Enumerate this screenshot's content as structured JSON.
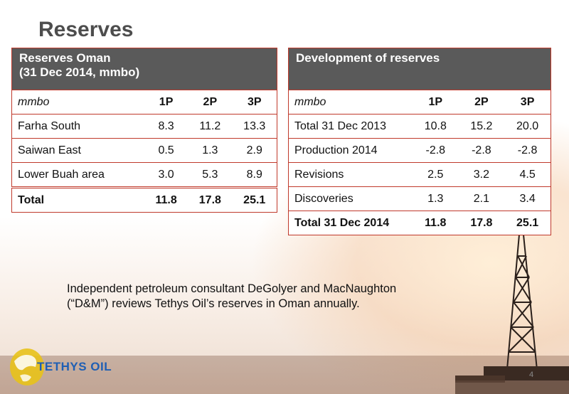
{
  "slide": {
    "title": "Reserves",
    "note_line1": "Independent petroleum consultant DeGolyer and MacNaughton",
    "note_line2": "(“D&M”) reviews Tethys Oil’s reserves in Oman annually.",
    "logo_text": "TETHYS OIL",
    "page_number": "4"
  },
  "oman_table": {
    "header_line1": "Reserves Oman",
    "header_line2": "(31 Dec 2014, mmbo)",
    "unit": "mmbo",
    "columns": [
      "1P",
      "2P",
      "3P"
    ],
    "rows": [
      {
        "label": "Farha South",
        "values": [
          "8.3",
          "11.2",
          "13.3"
        ]
      },
      {
        "label": "Saiwan East",
        "values": [
          "0.5",
          "1.3",
          "2.9"
        ]
      },
      {
        "label": "Lower Buah area",
        "values": [
          "3.0",
          "5.3",
          "8.9"
        ]
      }
    ],
    "total": {
      "label": "Total",
      "values": [
        "11.8",
        "17.8",
        "25.1"
      ]
    }
  },
  "development_table": {
    "header": "Development of reserves",
    "unit": "mmbo",
    "columns": [
      "1P",
      "2P",
      "3P"
    ],
    "rows": [
      {
        "label": "Total 31 Dec 2013",
        "values": [
          "10.8",
          "15.2",
          "20.0"
        ]
      },
      {
        "label": "Production 2014",
        "values": [
          "-2.8",
          "-2.8",
          "-2.8"
        ]
      },
      {
        "label": "Revisions",
        "values": [
          "2.5",
          "3.2",
          "4.5"
        ]
      },
      {
        "label": "Discoveries",
        "values": [
          "1.3",
          "2.1",
          "3.4"
        ]
      }
    ],
    "total": {
      "label": "Total 31 Dec 2014",
      "values": [
        "11.8",
        "17.8",
        "25.1"
      ]
    }
  }
}
